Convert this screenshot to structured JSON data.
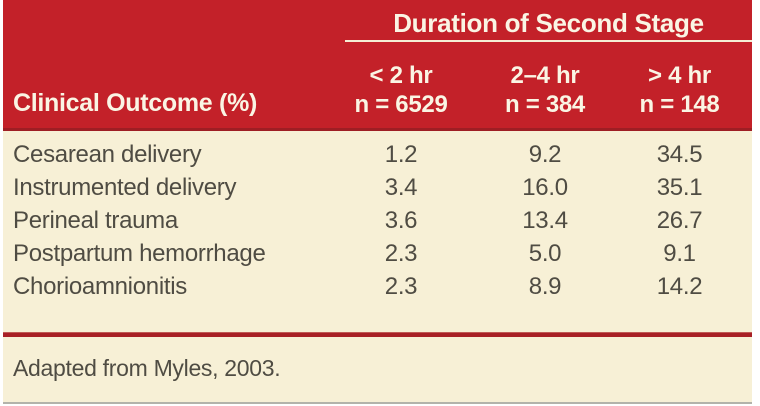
{
  "table": {
    "spanner": "Duration of Second Stage",
    "row_header": "Clinical Outcome (%)",
    "columns": [
      {
        "range": "< 2 hr",
        "n": "n = 6529"
      },
      {
        "range": "2–4 hr",
        "n": "n = 384"
      },
      {
        "range": "> 4 hr",
        "n": "n = 148"
      }
    ],
    "rows": [
      {
        "label": "Cesarean delivery",
        "values": [
          "1.2",
          "9.2",
          "34.5"
        ]
      },
      {
        "label": "Instrumented delivery",
        "values": [
          "3.4",
          "16.0",
          "35.1"
        ]
      },
      {
        "label": "Perineal trauma",
        "values": [
          "3.6",
          "13.4",
          "26.7"
        ]
      },
      {
        "label": "Postpartum hemorrhage",
        "values": [
          "2.3",
          "5.0",
          "9.1"
        ]
      },
      {
        "label": "Chorioamnionitis",
        "values": [
          "2.3",
          "8.9",
          "14.2"
        ]
      }
    ],
    "footnote": "Adapted from Myles, 2003."
  },
  "colors": {
    "header_red": "#C32129",
    "header_red_dark_edge": "#9E1E24",
    "separator_red": "#A82025",
    "background_cream": "#F7F0D6",
    "header_text": "#FAF5E4",
    "body_text": "#4F4C43",
    "bottom_rule_gray": "#B3B3AA"
  },
  "chart_data": {
    "type": "table",
    "title": "Duration of Second Stage",
    "row_header_label": "Clinical Outcome (%)",
    "columns": [
      "< 2 hr (n = 6529)",
      "2–4 hr (n = 384)",
      "> 4 hr (n = 148)"
    ],
    "rows": [
      {
        "outcome": "Cesarean delivery",
        "values": [
          1.2,
          9.2,
          34.5
        ]
      },
      {
        "outcome": "Instrumented delivery",
        "values": [
          3.4,
          16.0,
          35.1
        ]
      },
      {
        "outcome": "Perineal trauma",
        "values": [
          3.6,
          13.4,
          26.7
        ]
      },
      {
        "outcome": "Postpartum hemorrhage",
        "values": [
          2.3,
          5.0,
          9.1
        ]
      },
      {
        "outcome": "Chorioamnionitis",
        "values": [
          2.3,
          8.9,
          14.2
        ]
      }
    ],
    "footnote": "Adapted from Myles, 2003."
  }
}
